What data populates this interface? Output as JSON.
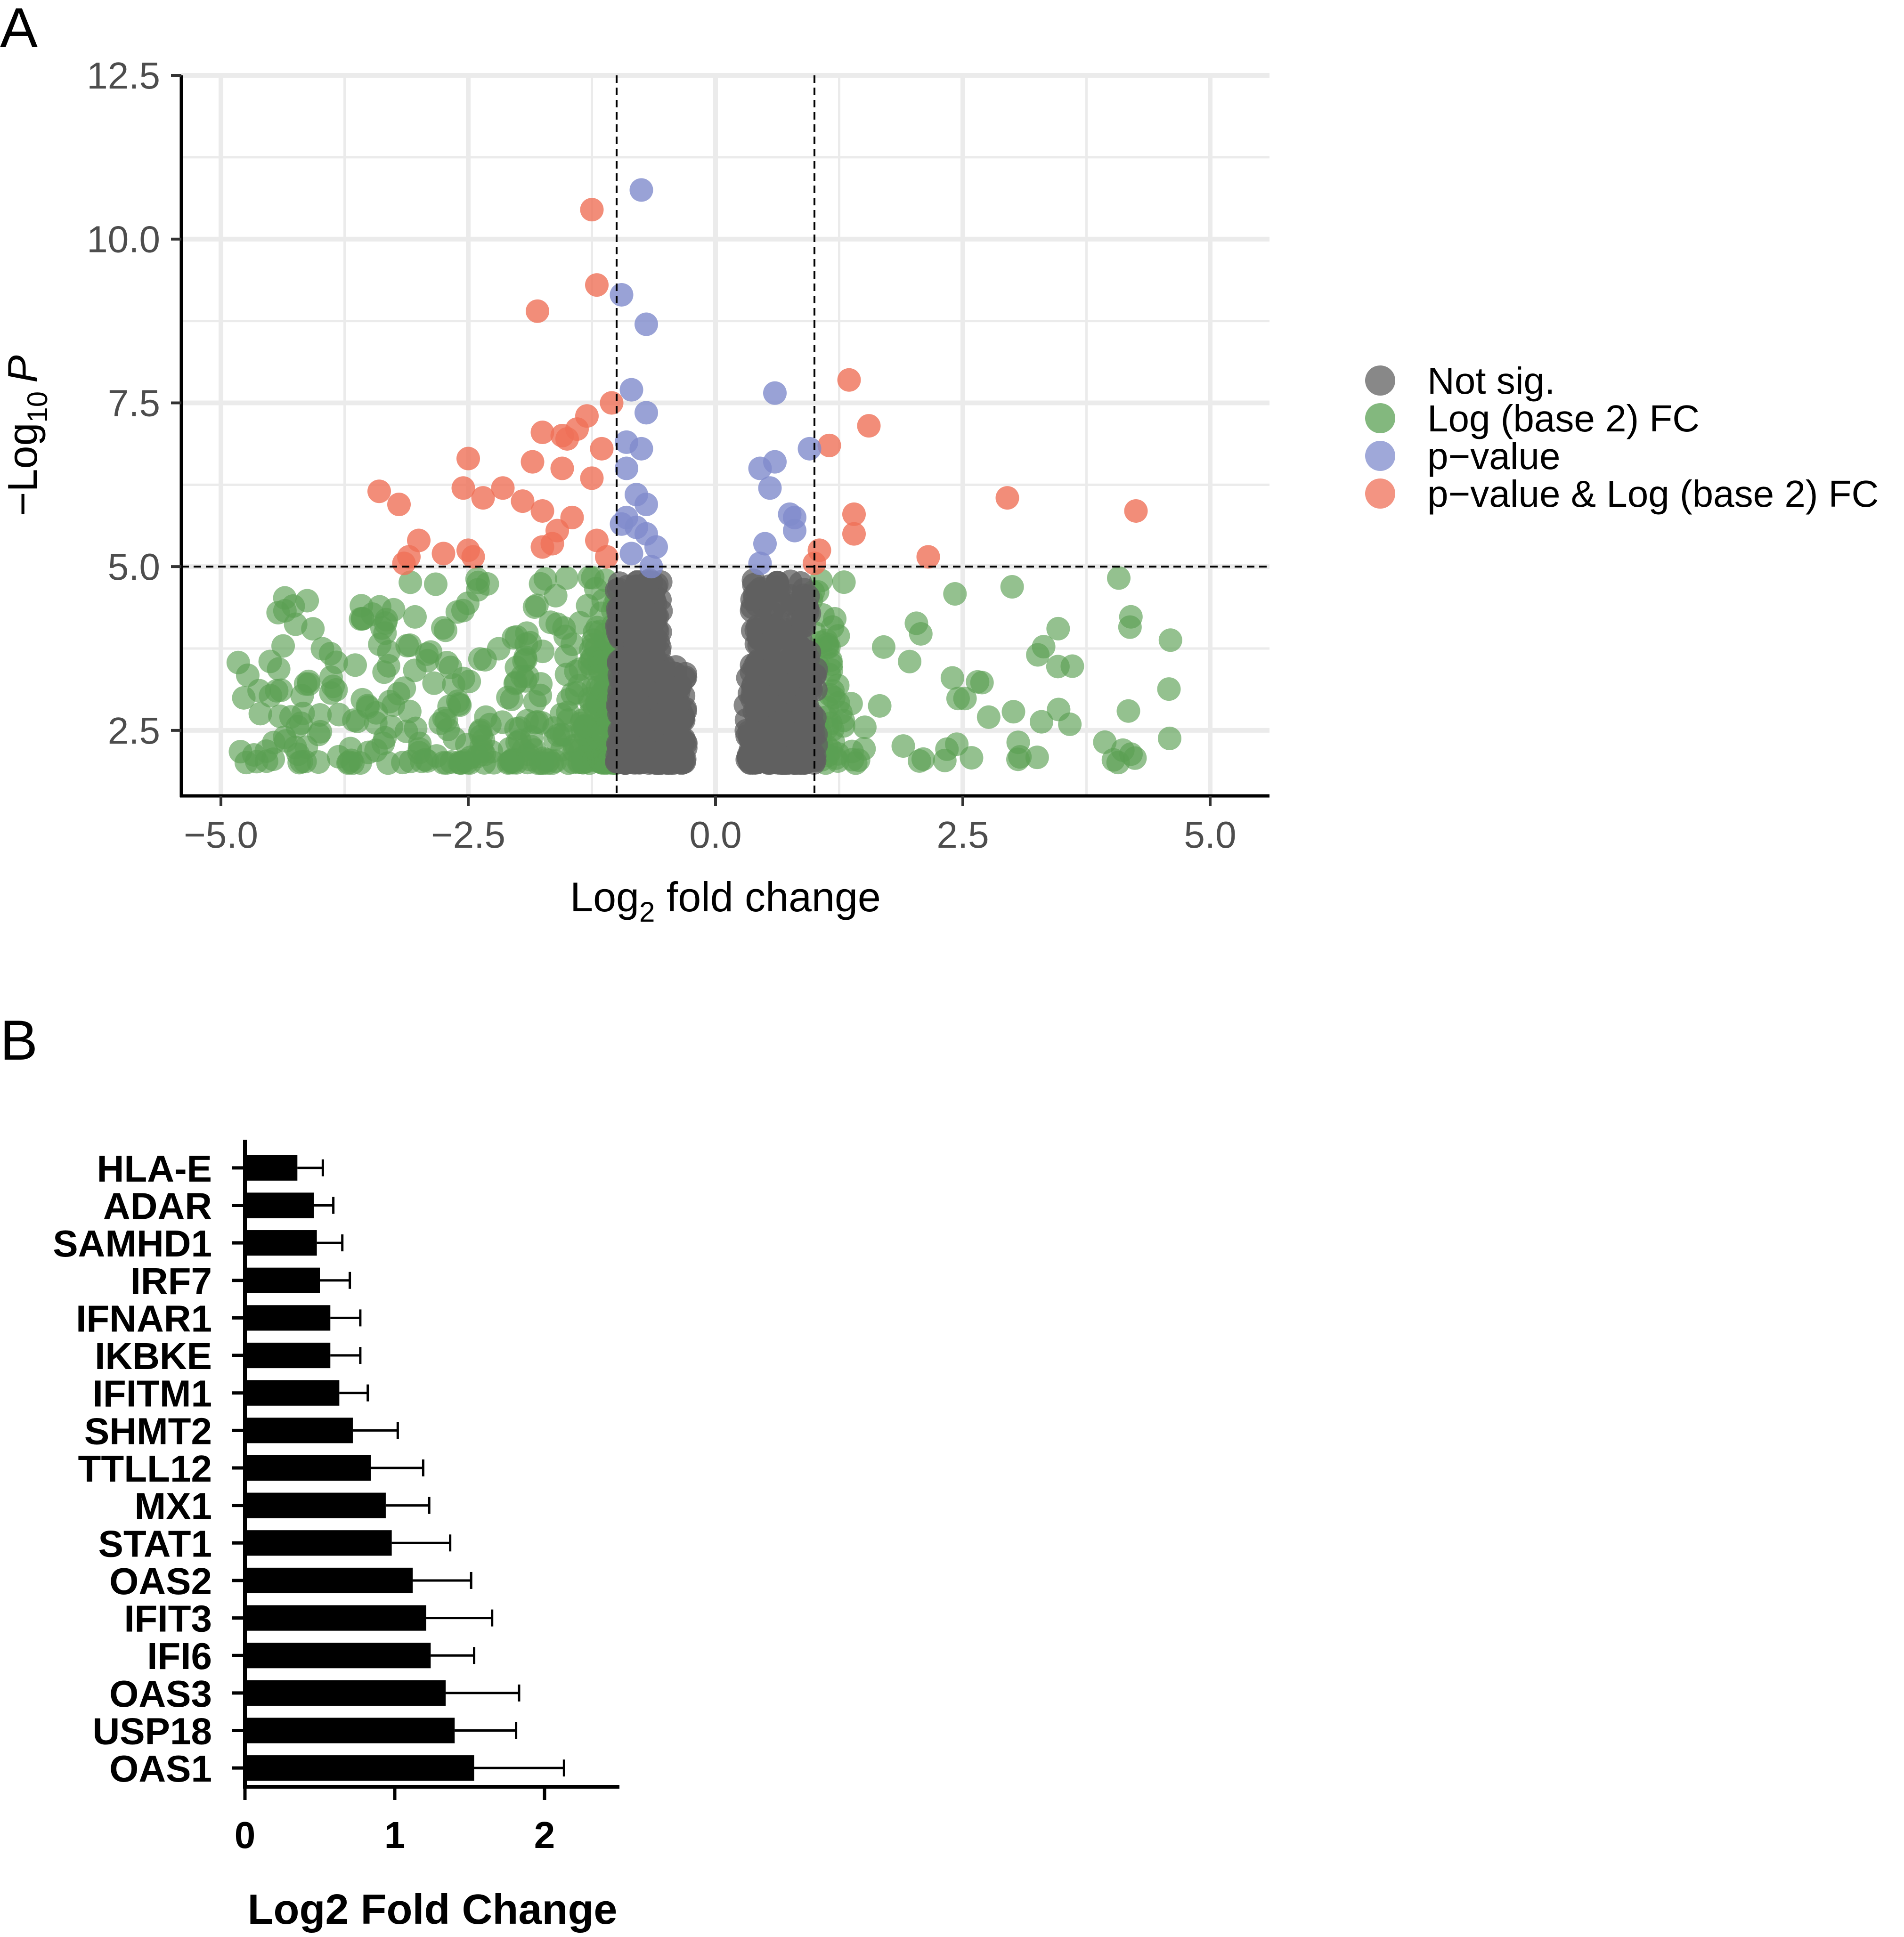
{
  "chart_data": [
    {
      "panel": "A",
      "type": "scatter",
      "subtype": "volcano",
      "xlabel": "Log",
      "xlabel_sub": "2",
      "xlabel_rest": " fold change",
      "ylabel_prefix": "−Log",
      "ylabel_sub": "10",
      "ylabel_var": "P",
      "xlim": [
        -5.4,
        5.6
      ],
      "ylim": [
        1.5,
        12.5
      ],
      "xticks": [
        -5.0,
        -2.5,
        0.0,
        2.5,
        5.0
      ],
      "xtick_labels": [
        "−5.0",
        "−2.5",
        "0.0",
        "2.5",
        "5.0"
      ],
      "yticks": [
        2.5,
        5.0,
        7.5,
        10.0,
        12.5
      ],
      "ytick_labels": [
        "2.5",
        "5.0",
        "7.5",
        "10.0",
        "12.5"
      ],
      "thresholds": {
        "fc": [
          -1.0,
          1.0
        ],
        "p": 5.0
      },
      "legend_items": [
        {
          "label": "Not sig.",
          "color": "#606060"
        },
        {
          "label": "Log (base 2) FC",
          "color": "#5aa053"
        },
        {
          "label": "p−value",
          "color": "#7f8bcc"
        },
        {
          "label": "p−value & Log (base 2) FC",
          "color": "#ef7058"
        }
      ],
      "series": [
        {
          "name": "p−value & Log (base 2) FC",
          "points": [
            [
              -1.25,
              10.45
            ],
            [
              -1.2,
              9.3
            ],
            [
              -1.8,
              8.9
            ],
            [
              -1.05,
              7.5
            ],
            [
              -1.5,
              6.95
            ],
            [
              -1.55,
              7.0
            ],
            [
              -1.4,
              7.1
            ],
            [
              -1.75,
              7.05
            ],
            [
              -1.3,
              7.3
            ],
            [
              -1.15,
              6.8
            ],
            [
              -2.5,
              6.65
            ],
            [
              -1.85,
              6.6
            ],
            [
              -1.55,
              6.5
            ],
            [
              -1.25,
              6.35
            ],
            [
              -2.55,
              6.2
            ],
            [
              -2.15,
              6.2
            ],
            [
              -1.95,
              6.0
            ],
            [
              -2.35,
              6.05
            ],
            [
              -3.4,
              6.15
            ],
            [
              -3.2,
              5.95
            ],
            [
              -1.75,
              5.85
            ],
            [
              -1.45,
              5.75
            ],
            [
              -1.6,
              5.55
            ],
            [
              -1.2,
              5.4
            ],
            [
              -1.65,
              5.35
            ],
            [
              -1.75,
              5.3
            ],
            [
              -3.0,
              5.4
            ],
            [
              -3.1,
              5.15
            ],
            [
              -2.75,
              5.2
            ],
            [
              -2.5,
              5.25
            ],
            [
              -2.45,
              5.15
            ],
            [
              -3.15,
              5.05
            ],
            [
              -1.1,
              5.15
            ],
            [
              1.35,
              7.85
            ],
            [
              1.55,
              7.15
            ],
            [
              1.15,
              6.85
            ],
            [
              2.95,
              6.05
            ],
            [
              4.25,
              5.85
            ],
            [
              1.4,
              5.8
            ],
            [
              1.4,
              5.5
            ],
            [
              1.05,
              5.25
            ],
            [
              2.15,
              5.15
            ],
            [
              1.0,
              5.05
            ]
          ]
        },
        {
          "name": "p−value",
          "points": [
            [
              -0.75,
              10.75
            ],
            [
              -0.95,
              9.15
            ],
            [
              -0.7,
              8.7
            ],
            [
              -0.85,
              7.7
            ],
            [
              -0.7,
              7.35
            ],
            [
              -0.9,
              6.9
            ],
            [
              -0.75,
              6.8
            ],
            [
              -0.9,
              6.5
            ],
            [
              -0.8,
              6.1
            ],
            [
              -0.9,
              5.75
            ],
            [
              -0.7,
              5.95
            ],
            [
              -0.8,
              5.6
            ],
            [
              -0.95,
              5.65
            ],
            [
              -0.7,
              5.5
            ],
            [
              -0.6,
              5.3
            ],
            [
              -0.85,
              5.2
            ],
            [
              -0.65,
              5.0
            ],
            [
              0.6,
              7.65
            ],
            [
              0.95,
              6.8
            ],
            [
              0.6,
              6.6
            ],
            [
              0.45,
              6.5
            ],
            [
              0.55,
              6.2
            ],
            [
              0.75,
              5.8
            ],
            [
              0.8,
              5.75
            ],
            [
              0.5,
              5.35
            ],
            [
              0.8,
              5.55
            ],
            [
              0.45,
              5.05
            ]
          ]
        }
      ]
    },
    {
      "panel": "B",
      "type": "bar",
      "orientation": "horizontal",
      "xlabel": "Log2 Fold Change",
      "xlim": [
        0,
        2.5
      ],
      "xticks": [
        0,
        1,
        2
      ],
      "xtick_labels": [
        "0",
        "1",
        "2"
      ],
      "categories": [
        "HLA-E",
        "ADAR",
        "SAMHD1",
        "IRF7",
        "IFNAR1",
        "IKBKE",
        "IFITM1",
        "SHMT2",
        "TTLL12",
        "MX1",
        "STAT1",
        "OAS2",
        "IFIT3",
        "IFI6",
        "OAS3",
        "USP18",
        "OAS1"
      ],
      "values": [
        0.35,
        0.46,
        0.48,
        0.5,
        0.57,
        0.57,
        0.63,
        0.72,
        0.84,
        0.94,
        0.98,
        1.12,
        1.21,
        1.24,
        1.34,
        1.4,
        1.53
      ],
      "errors": [
        0.17,
        0.13,
        0.17,
        0.2,
        0.2,
        0.2,
        0.19,
        0.3,
        0.35,
        0.29,
        0.39,
        0.39,
        0.44,
        0.29,
        0.49,
        0.41,
        0.6
      ]
    }
  ],
  "panels": {
    "a_label": "A",
    "b_label": "B"
  }
}
